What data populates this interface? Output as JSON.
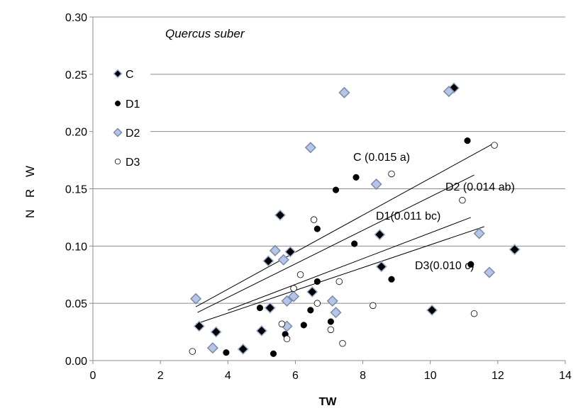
{
  "chart_data": {
    "type": "scatter",
    "title": "Quercus  suber",
    "xlabel": "TW",
    "ylabel": "N  R  W",
    "xlim": [
      0,
      14
    ],
    "ylim": [
      0,
      0.3
    ],
    "xticks": [
      0,
      2,
      4,
      6,
      8,
      10,
      12,
      14
    ],
    "yticks": [
      0.0,
      0.05,
      0.1,
      0.15,
      0.2,
      0.25,
      0.3
    ],
    "ytick_labels": [
      "0.00",
      "0.05",
      "0.10",
      "0.15",
      "0.20",
      "0.25",
      "0.30"
    ],
    "grid": "horizontal",
    "legend_position": "left",
    "series": [
      {
        "name": "C",
        "marker": "diamond",
        "color": "#000000",
        "edge": "#9fb3d8",
        "x": [
          3.15,
          3.65,
          4.45,
          5.0,
          5.2,
          5.25,
          5.55,
          5.85,
          6.5,
          8.5,
          8.55,
          10.05,
          10.7,
          12.5
        ],
        "y": [
          0.03,
          0.025,
          0.01,
          0.026,
          0.087,
          0.046,
          0.127,
          0.095,
          0.06,
          0.11,
          0.082,
          0.044,
          0.238,
          0.097
        ]
      },
      {
        "name": "D1",
        "marker": "circle",
        "color": "#000000",
        "x": [
          3.95,
          4.95,
          5.35,
          5.7,
          6.25,
          6.45,
          6.65,
          6.65,
          7.05,
          7.2,
          7.75,
          7.8,
          8.85,
          11.1,
          11.2
        ],
        "y": [
          0.007,
          0.046,
          0.006,
          0.023,
          0.031,
          0.044,
          0.069,
          0.115,
          0.034,
          0.149,
          0.102,
          0.16,
          0.071,
          0.192,
          0.084
        ]
      },
      {
        "name": "D2",
        "marker": "diamond",
        "color": "#b4c5e8",
        "edge": "#7a8ca8",
        "x": [
          3.05,
          3.55,
          5.4,
          5.65,
          5.75,
          5.75,
          5.95,
          6.45,
          7.1,
          7.2,
          7.45,
          8.4,
          10.55,
          11.45,
          11.75
        ],
        "y": [
          0.054,
          0.011,
          0.096,
          0.088,
          0.03,
          0.052,
          0.056,
          0.186,
          0.052,
          0.042,
          0.234,
          0.154,
          0.235,
          0.111,
          0.077
        ]
      },
      {
        "name": "D3",
        "marker": "circle",
        "color": "#ffffff",
        "x": [
          2.95,
          5.6,
          5.75,
          5.95,
          6.15,
          6.55,
          6.65,
          7.05,
          7.3,
          7.4,
          8.3,
          8.85,
          10.95,
          11.3,
          11.9
        ],
        "y": [
          0.008,
          0.032,
          0.019,
          0.063,
          0.075,
          0.123,
          0.05,
          0.027,
          0.069,
          0.015,
          0.048,
          0.163,
          0.14,
          0.041,
          0.188
        ]
      }
    ],
    "regression_lines": [
      {
        "label": "C (0.015 a)",
        "x": [
          3.05,
          11.9
        ],
        "y": [
          0.047,
          0.19
        ]
      },
      {
        "label": "D2 (0.014 ab)",
        "x": [
          3.1,
          11.3
        ],
        "y": [
          0.042,
          0.162
        ]
      },
      {
        "label": "D1(0.011 bc)",
        "x": [
          4.0,
          11.2
        ],
        "y": [
          0.044,
          0.125
        ]
      },
      {
        "label": "D3(0.010 c)",
        "x": [
          3.05,
          11.6
        ],
        "y": [
          0.032,
          0.117
        ]
      }
    ]
  }
}
